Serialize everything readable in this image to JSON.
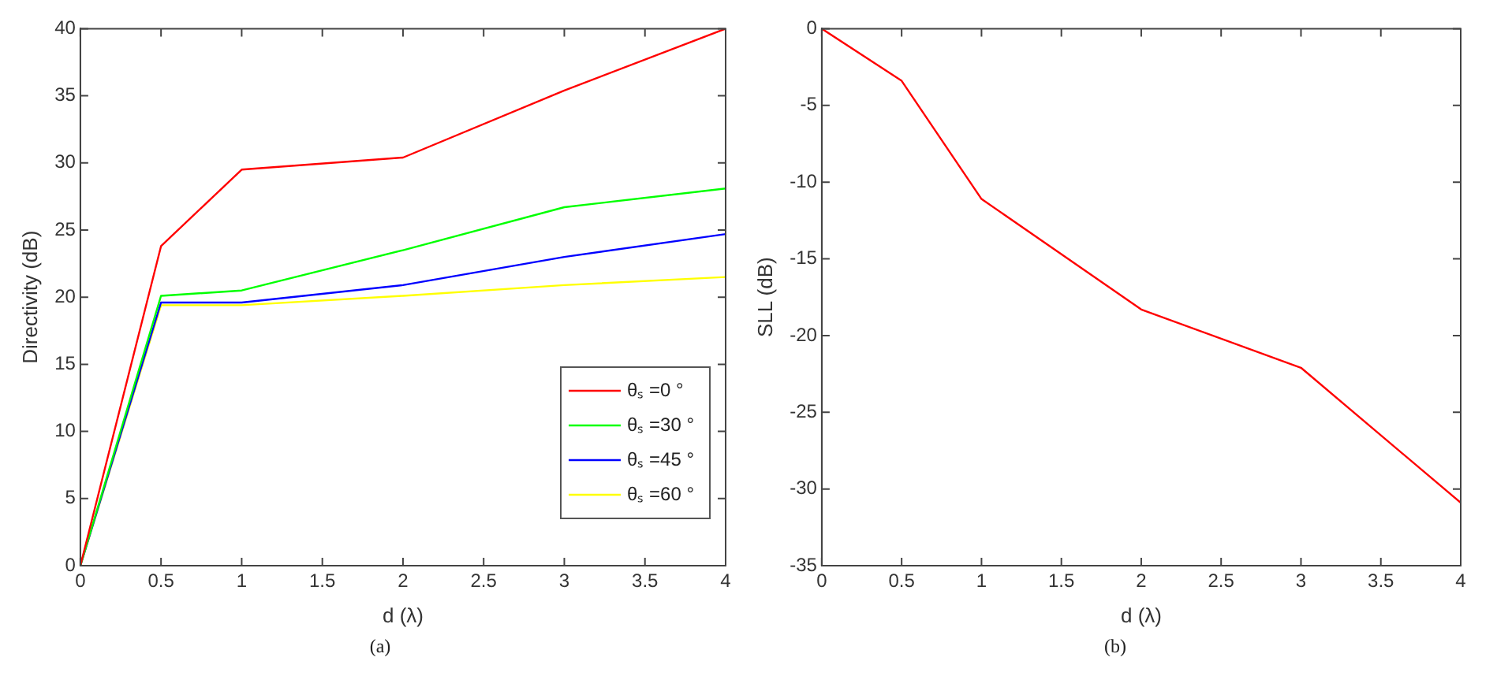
{
  "chart_data": [
    {
      "type": "line",
      "xlabel": "d (λ)",
      "ylabel": "Directivity (dB)",
      "x": [
        0,
        0.5,
        1,
        2,
        3,
        4
      ],
      "xlim": [
        0,
        4
      ],
      "xticks": [
        0,
        0.5,
        1,
        1.5,
        2,
        2.5,
        3,
        3.5,
        4
      ],
      "ylim": [
        0,
        40
      ],
      "yticks": [
        0,
        5,
        10,
        15,
        20,
        25,
        30,
        35,
        40
      ],
      "grid": false,
      "legend": "bottom right",
      "marker": "none",
      "line_style": "solid",
      "annotations": [
        "(a)"
      ],
      "series": [
        {
          "name": "θₛ =0 °",
          "color": "#ff0000",
          "values": [
            0,
            23.8,
            29.5,
            30.4,
            35.4,
            40
          ]
        },
        {
          "name": "θₛ =30 °",
          "color": "#00ff00",
          "values": [
            0,
            20.1,
            20.5,
            23.5,
            26.7,
            28.1
          ]
        },
        {
          "name": "θₛ =45 °",
          "color": "#0000ff",
          "values": [
            0,
            19.6,
            19.6,
            20.9,
            23.0,
            24.7
          ]
        },
        {
          "name": "θₛ =60 °",
          "color": "#ffff00",
          "values": [
            0,
            19.4,
            19.4,
            20.1,
            20.9,
            21.5
          ]
        }
      ]
    },
    {
      "type": "line",
      "xlabel": "d (λ)",
      "ylabel": "SLL (dB)",
      "x": [
        0,
        0.5,
        1,
        2,
        3,
        4
      ],
      "xlim": [
        0,
        4
      ],
      "xticks": [
        0,
        0.5,
        1,
        1.5,
        2,
        2.5,
        3,
        3.5,
        4
      ],
      "ylim": [
        -35,
        0
      ],
      "yticks": [
        -35,
        -30,
        -25,
        -20,
        -15,
        -10,
        -5,
        0
      ],
      "grid": false,
      "legend": false,
      "marker": "none",
      "line_style": "solid",
      "annotations": [
        "(b)"
      ],
      "series": [
        {
          "color": "#ff0000",
          "values": [
            0,
            -3.4,
            -11.1,
            -18.3,
            -22.1,
            -30.9
          ]
        }
      ]
    }
  ]
}
